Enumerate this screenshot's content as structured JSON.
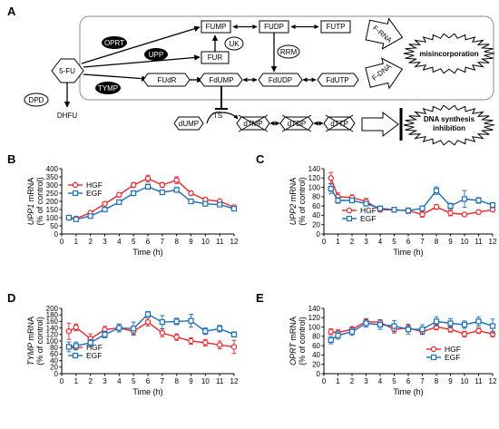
{
  "panels": {
    "A": "A",
    "B": "B",
    "C": "C",
    "D": "D",
    "E": "E"
  },
  "pathway": {
    "nodes": {
      "fu": "5-FU",
      "fump": "FUMP",
      "fudp": "FUDP",
      "futp": "FUTP",
      "uk": "UK",
      "fur": "FUR",
      "rrm": "RRM",
      "fudr": "FUdR",
      "fdump": "FdUMP",
      "fdudp": "FdUDP",
      "fdutp": "FdUTP",
      "frna": "F-RNA",
      "fdna": "F-DNA",
      "misinc": "misincorporation",
      "dpd": "DPD",
      "dhfu": "DHFU",
      "dump": "dUMP",
      "ts": "TS",
      "dtmp": "dTMP",
      "dtdp": "dTDP",
      "dttp": "dTTP",
      "dnasyn_line1": "DNA synthesis",
      "dnasyn_line2": "inhibition"
    },
    "enzymes": {
      "oprt": "OPRT",
      "upp": "UPP",
      "tymp": "TYMP"
    }
  },
  "chart_data": [
    {
      "type": "line",
      "panel": "B",
      "ylabel_gene": "UPP1",
      "ylabel_rest": " mRNA",
      "ylabel2": "(% of control)",
      "xlabel": "Time (h)",
      "xlim": [
        0,
        12
      ],
      "ylim": [
        0,
        400
      ],
      "yticks": [
        0,
        50,
        100,
        150,
        200,
        250,
        300,
        350,
        400
      ],
      "xticks": [
        0,
        1,
        2,
        3,
        4,
        5,
        6,
        7,
        8,
        9,
        10,
        11,
        12
      ],
      "legend": "top-left",
      "series": [
        {
          "name": "HGF",
          "color": "#e8262b",
          "marker": "circle",
          "x": [
            0.5,
            1,
            2,
            3,
            4,
            5,
            6,
            7,
            8,
            9,
            10,
            11,
            12
          ],
          "y": [
            100,
            95,
            130,
            185,
            240,
            300,
            340,
            300,
            330,
            250,
            210,
            200,
            165
          ],
          "err": [
            8,
            8,
            10,
            10,
            12,
            15,
            20,
            15,
            20,
            12,
            12,
            10,
            10
          ]
        },
        {
          "name": "EGF",
          "color": "#1c6db5",
          "marker": "square",
          "x": [
            0.5,
            1,
            2,
            3,
            4,
            5,
            6,
            7,
            8,
            9,
            10,
            11,
            12
          ],
          "y": [
            100,
            90,
            110,
            150,
            195,
            250,
            290,
            255,
            270,
            200,
            185,
            180,
            155
          ],
          "err": [
            8,
            8,
            8,
            10,
            12,
            15,
            15,
            12,
            15,
            10,
            10,
            10,
            10
          ]
        }
      ]
    },
    {
      "type": "line",
      "panel": "C",
      "ylabel_gene": "UPP2",
      "ylabel_rest": " mRNA",
      "ylabel2": "(% of control)",
      "xlabel": "Time (h)",
      "xlim": [
        0,
        12
      ],
      "ylim": [
        0,
        140
      ],
      "yticks": [
        0,
        20,
        40,
        60,
        80,
        100,
        120,
        140
      ],
      "xticks": [
        0,
        1,
        2,
        3,
        4,
        5,
        6,
        7,
        8,
        9,
        10,
        11,
        12
      ],
      "legend": "bottom-left",
      "series": [
        {
          "name": "HGF",
          "color": "#e8262b",
          "marker": "circle",
          "x": [
            0.5,
            1,
            2,
            3,
            4,
            5,
            6,
            7,
            8,
            9,
            10,
            11,
            12
          ],
          "y": [
            120,
            80,
            78,
            70,
            52,
            52,
            50,
            42,
            58,
            45,
            42,
            47,
            52
          ],
          "err": [
            12,
            8,
            6,
            6,
            5,
            5,
            6,
            6,
            5,
            6,
            4,
            4,
            4
          ]
        },
        {
          "name": "EGF",
          "color": "#1c6db5",
          "marker": "square",
          "x": [
            0.5,
            1,
            2,
            3,
            4,
            5,
            6,
            7,
            8,
            9,
            10,
            11,
            12
          ],
          "y": [
            97,
            72,
            72,
            65,
            55,
            52,
            50,
            55,
            93,
            60,
            75,
            72,
            62
          ],
          "err": [
            10,
            6,
            5,
            5,
            5,
            5,
            5,
            5,
            8,
            6,
            18,
            6,
            5
          ]
        }
      ]
    },
    {
      "type": "line",
      "panel": "D",
      "ylabel_gene": "TYMP",
      "ylabel_rest": " mRNA",
      "ylabel2": "(% of control)",
      "xlabel": "Time (h)",
      "xlim": [
        0,
        12
      ],
      "ylim": [
        0,
        200
      ],
      "yticks": [
        0,
        20,
        40,
        60,
        80,
        100,
        120,
        140,
        160,
        180,
        200
      ],
      "xticks": [
        0,
        1,
        2,
        3,
        4,
        5,
        6,
        7,
        8,
        9,
        10,
        11,
        12
      ],
      "legend": "bottom-left",
      "series": [
        {
          "name": "HGF",
          "color": "#e8262b",
          "marker": "circle",
          "x": [
            0.5,
            1,
            2,
            3,
            4,
            5,
            6,
            7,
            8,
            9,
            10,
            11,
            12
          ],
          "y": [
            130,
            142,
            107,
            135,
            140,
            130,
            158,
            125,
            112,
            100,
            95,
            88,
            82
          ],
          "err": [
            25,
            10,
            15,
            10,
            12,
            10,
            12,
            12,
            10,
            10,
            10,
            12,
            20
          ]
        },
        {
          "name": "EGF",
          "color": "#1c6db5",
          "marker": "square",
          "x": [
            0.5,
            1,
            2,
            3,
            4,
            5,
            6,
            7,
            8,
            9,
            10,
            11,
            12
          ],
          "y": [
            82,
            85,
            95,
            120,
            140,
            138,
            182,
            158,
            160,
            162,
            130,
            138,
            120
          ],
          "err": [
            15,
            12,
            10,
            10,
            12,
            20,
            8,
            20,
            10,
            20,
            10,
            10,
            8
          ]
        }
      ]
    },
    {
      "type": "line",
      "panel": "E",
      "ylabel_gene": "OPRT",
      "ylabel_rest": " mRNA",
      "ylabel2": "(% of control)",
      "xlabel": "Time (h)",
      "xlim": [
        0,
        12
      ],
      "ylim": [
        0,
        140
      ],
      "yticks": [
        0,
        20,
        40,
        60,
        80,
        100,
        120,
        140
      ],
      "xticks": [
        0,
        1,
        2,
        3,
        4,
        5,
        6,
        7,
        8,
        9,
        10,
        11,
        12
      ],
      "legend": "bottom-right",
      "series": [
        {
          "name": "HGF",
          "color": "#e8262b",
          "marker": "circle",
          "x": [
            0.5,
            1,
            2,
            3,
            4,
            5,
            6,
            7,
            8,
            9,
            10,
            11,
            12
          ],
          "y": [
            90,
            88,
            95,
            112,
            110,
            95,
            98,
            90,
            100,
            95,
            85,
            92,
            85
          ],
          "err": [
            6,
            6,
            6,
            6,
            6,
            8,
            8,
            6,
            6,
            6,
            6,
            6,
            6
          ]
        },
        {
          "name": "EGF",
          "color": "#1c6db5",
          "marker": "square",
          "x": [
            0.5,
            1,
            2,
            3,
            4,
            5,
            6,
            7,
            8,
            9,
            10,
            11,
            12
          ],
          "y": [
            72,
            82,
            90,
            108,
            105,
            102,
            95,
            95,
            112,
            108,
            105,
            112,
            102
          ],
          "err": [
            8,
            8,
            8,
            8,
            10,
            12,
            10,
            10,
            10,
            10,
            8,
            10,
            15
          ]
        }
      ]
    }
  ]
}
